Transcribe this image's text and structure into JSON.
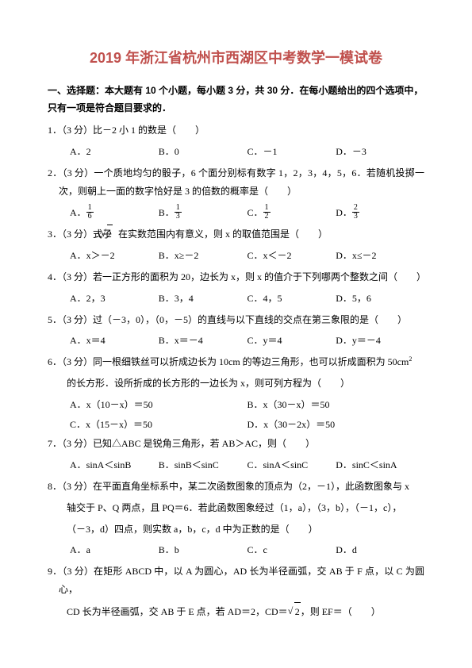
{
  "title": "2019 年浙江省杭州市西湖区中考数学一模试卷",
  "section_header": "一、选择题：本大题有 10 个小题，每小题 3 分，共 30 分．在每小题给出的四个选项中，只有一项是符合题目要求的．",
  "title_color": "#c0504d",
  "text_color": "#000000",
  "background_color": "#ffffff",
  "font_size_title": 18,
  "font_size_body": 12,
  "paren": "（　　）",
  "questions": {
    "q1": {
      "stem": "1．（3 分）比－2 小 1 的数是（　　）",
      "A": "A．2",
      "B": "B．0",
      "C": "C．－1",
      "D": "D．－3"
    },
    "q2": {
      "stem": "2．（3 分）一个质地均匀的骰子，6 个面分别标有数字 1，2，3，4，5，6．若随机投掷一次，则朝上一面的数字恰好是 3 的倍数的概率是（　　）",
      "A_pre": "A．",
      "A_num": "1",
      "A_den": "6",
      "B_pre": "B．",
      "B_num": "1",
      "B_den": "3",
      "C_pre": "C．",
      "C_num": "1",
      "C_den": "2",
      "D_pre": "D．",
      "D_num": "2",
      "D_den": "3"
    },
    "q3": {
      "stem_pre": "3．（3 分）式子",
      "sqrt_body": "x−2",
      "stem_post": "在实数范围内有意义，则 x 的取值范围是（　　）",
      "A": "A．x＞－2",
      "B": "B．x≥－2",
      "C": "C．x＜－2",
      "D": "D．x≤－2"
    },
    "q4": {
      "stem": "4．（3 分）若一正方形的面积为 20，边长为 x，则 x 的值介于下列哪两个整数之间（　　）",
      "A": "A．2，3",
      "B": "B．3，4",
      "C": "C．4，5",
      "D": "D．5，6"
    },
    "q5": {
      "stem": "5．（3 分）过（－3，0），（0，－5）的直线与以下直线的交点在第三象限的是（　　）",
      "A": "A．x＝4",
      "B": "B．x＝－4",
      "C": "C．y＝4",
      "D": "D．y＝－4"
    },
    "q6": {
      "stem_line1": "6．（3 分）同一根细铁丝可以折成边长为 10cm 的等边三角形，也可以折成面积为 50cm",
      "stem_sup": "2",
      "stem_line2": "的长方形．设所折成的长方形的一边长为 x，则可列方程为（　　）",
      "A": "A．x（10－x）＝50",
      "B": "B．x（30－x）＝50",
      "C": "C．x（15－x）＝50",
      "D": "D．x（30－2x）＝50"
    },
    "q7": {
      "stem": "7．（3 分）已知△ABC 是锐角三角形，若 AB＞AC，则（　　）",
      "A": "A．sinA＜sinB",
      "B": "B．sinB＜sinC",
      "C": "C．sinA＜sinC",
      "D": "D．sinC＜sinA"
    },
    "q8": {
      "stem_line1": "8．（3 分）在平面直角坐标系中，某二次函数图象的顶点为（2，－1），此函数图象与 x",
      "stem_line2": "轴交于 P、Q 两点，且 PQ＝6．若此函数图象经过（1，a），（3，b），（－1，c），",
      "stem_line3": "（－3，d）四点，则实数 a，b，c，d 中为正数的是（　　）",
      "A": "A．a",
      "B": "B．b",
      "C": "C．c",
      "D": "D．d"
    },
    "q9": {
      "stem_line1": "9．（3 分）在矩形 ABCD 中，以 A 为圆心，AD 长为半径画弧，交 AB 于 F 点，以 C 为圆心，",
      "stem_line2_pre": "CD 长为半径画弧，交 AB 于 E 点，若 AD＝2，CD＝",
      "sqrt_body": "2",
      "stem_line2_post": "，则 EF＝（　　）"
    }
  }
}
